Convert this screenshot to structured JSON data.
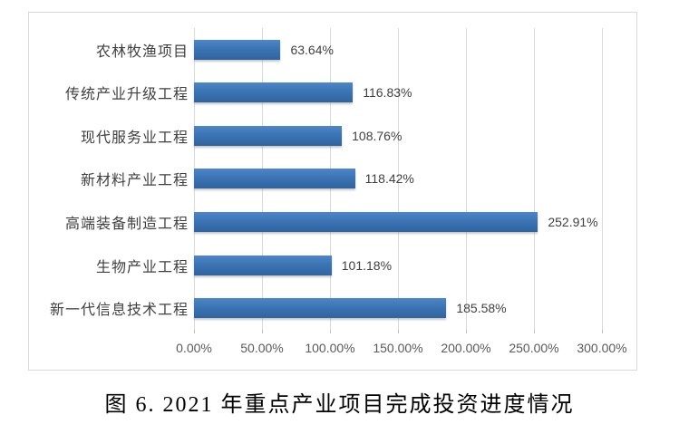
{
  "caption": {
    "text": "图 6. 2021 年重点产业项目完成投资进度情况"
  },
  "chart_data": {
    "type": "bar",
    "orientation": "horizontal",
    "title": "",
    "xlabel": "",
    "ylabel": "",
    "categories": [
      "农林牧渔项目",
      "传统产业升级工程",
      "现代服务业工程",
      "新材料产业工程",
      "高端装备制造工程",
      "生物产业工程",
      "新一代信息技术工程"
    ],
    "values": [
      63.64,
      116.83,
      108.76,
      118.42,
      252.91,
      101.18,
      185.58
    ],
    "value_labels": [
      "63.64%",
      "116.83%",
      "108.76%",
      "118.42%",
      "252.91%",
      "101.18%",
      "185.58%"
    ],
    "x_ticks": [
      "0.00%",
      "50.00%",
      "100.00%",
      "150.00%",
      "200.00%",
      "250.00%",
      "300.00%"
    ],
    "x_tick_values": [
      0,
      50,
      100,
      150,
      200,
      250,
      300
    ],
    "xlim": [
      0,
      300
    ],
    "grid": true,
    "legend": false,
    "colors": {
      "bar_top": "#4d87c7",
      "bar_mid": "#3c74b4",
      "bar_bottom": "#2f649f",
      "gridline": "#d9d9d9",
      "frame_border": "#d9d9d9",
      "category_text": "#404040",
      "value_text": "#404040",
      "axis_text": "#595959"
    }
  }
}
